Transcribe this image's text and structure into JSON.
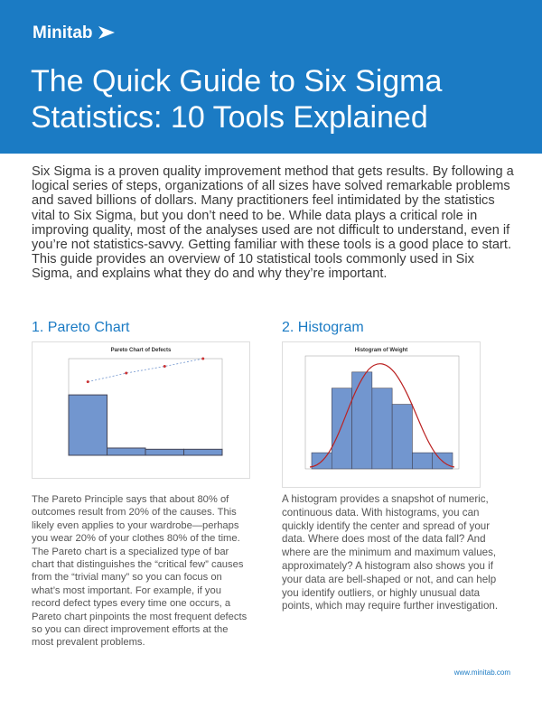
{
  "header": {
    "brand": "Minitab",
    "title": "The Quick Guide to Six Sigma Statistics: 10 Tools Explained"
  },
  "intro": "Six Sigma is a proven quality improvement method that gets results. By following a logical series of steps, organizations of all sizes have solved remarkable problems and saved billions of dollars. Many practitioners feel intimidated by the statistics vital to Six Sigma, but you don’t need to be. While data plays a critical role in improving quality, most of the analyses used are not difficult to understand, even if you’re not statistics-savvy. Getting familiar with these tools is a good place to start. This guide provides an overview of 10 statistical tools commonly used in Six Sigma, and explains what they do and why they’re important.",
  "sections": [
    {
      "heading": "1. Pareto Chart",
      "figure": {
        "type": "pareto",
        "title": "Pareto Chart of Defects",
        "values": [
          250,
          30,
          25,
          25
        ],
        "cumulative": [
          76,
          85,
          92,
          100
        ],
        "ylim": [
          0,
          400
        ],
        "y2lim": [
          0,
          100
        ]
      },
      "body": "The Pareto Principle says that about 80% of outcomes result from 20% of the causes. This likely even applies to your wardrobe—perhaps you wear 20% of your clothes 80% of the time. The Pareto chart is a specialized type of bar chart that distinguishes the “critical few” causes  from the “trivial many” so you can focus on what’s most important. For example, if you record defect types every time one occurs, a Pareto chart pinpoints the most frequent defects so you can direct improvement efforts at the most prevalent problems."
    },
    {
      "heading": "2. Histogram",
      "figure": {
        "type": "histogram",
        "title": "Histogram of Weight",
        "counts": [
          1,
          5,
          6,
          5,
          4,
          1,
          1
        ],
        "ylim": [
          0,
          7
        ]
      },
      "body": "A histogram provides a snapshot of numeric, continuous data. With histograms, you can quickly identify the center and spread of your data. Where does most of the data fall? And where are the minimum and maximum values, approximately? A histogram also shows you if your data are bell-shaped or not, and can help you identify outliers, or highly unusual data points, which may require further investigation."
    }
  ],
  "footer": {
    "url": "www.minitab.com"
  }
}
